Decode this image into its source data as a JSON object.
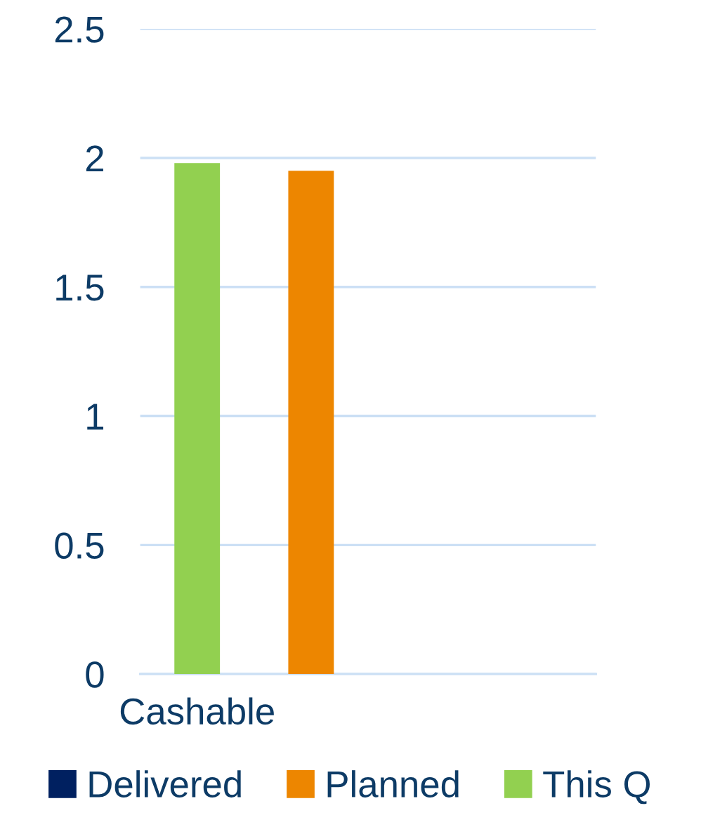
{
  "chart_data": {
    "type": "bar",
    "stacked": true,
    "categories": [
      "Cashable",
      null,
      null,
      null
    ],
    "series": [
      {
        "name": "Delivered",
        "color": "#002060",
        "values": [
          null,
          null,
          null,
          null
        ]
      },
      {
        "name": "Planned",
        "color": "#ed8600",
        "values": [
          null,
          1.95,
          null,
          null
        ]
      },
      {
        "name": "This Q",
        "color": "#92d050",
        "values": [
          1.98,
          null,
          null,
          null
        ]
      }
    ],
    "ylim": [
      0,
      2.5
    ],
    "yticks": [
      0,
      0.5,
      1,
      1.5,
      2,
      2.5
    ],
    "grid": "y",
    "legend": "bottom"
  }
}
